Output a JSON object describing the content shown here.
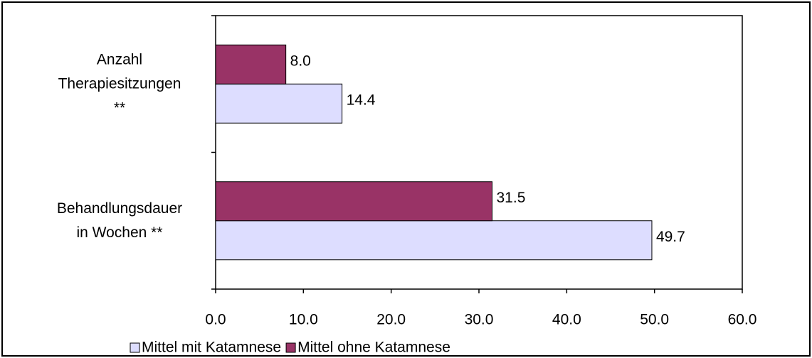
{
  "chart_data": {
    "type": "hbar",
    "categories": [
      [
        "Anzahl",
        "Therapiesitzungen",
        "**"
      ],
      [
        "Behandlungsdauer",
        "in Wochen **"
      ]
    ],
    "series": [
      {
        "name": "Mittel mit Katamnese",
        "color": "#ddddff",
        "values": [
          14.4,
          49.7
        ],
        "value_labels": [
          "14.4",
          "49.7"
        ]
      },
      {
        "name": "Mittel ohne Katamnese",
        "color": "#993366",
        "values": [
          8.0,
          31.5
        ],
        "value_labels": [
          "8.0",
          "31.5"
        ]
      }
    ],
    "xlim": [
      0,
      60
    ],
    "xticks": [
      {
        "value": 0,
        "label": "0.0"
      },
      {
        "value": 10,
        "label": "10.0"
      },
      {
        "value": 20,
        "label": "20.0"
      },
      {
        "value": 30,
        "label": "30.0"
      },
      {
        "value": 40,
        "label": "40.0"
      },
      {
        "value": 50,
        "label": "50.0"
      },
      {
        "value": 60,
        "label": "60.0"
      }
    ]
  }
}
